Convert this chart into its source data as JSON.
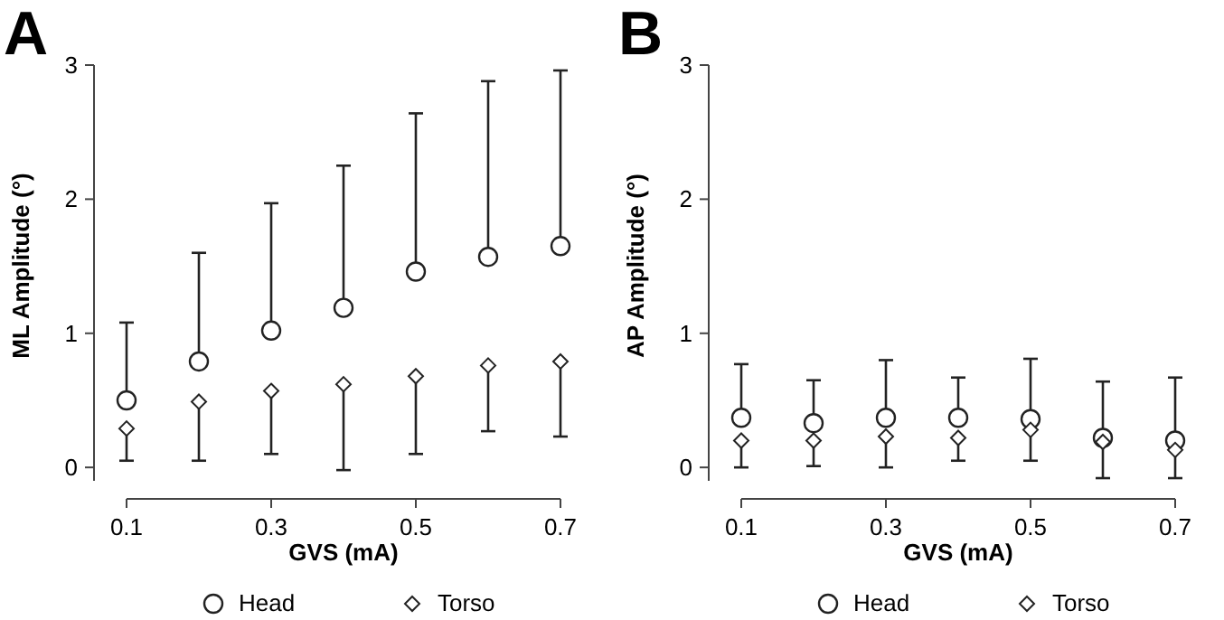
{
  "chart_data": [
    {
      "type": "scatter",
      "title": "A",
      "xlabel": "GVS (mA)",
      "ylabel": "ML Amplitude (°)",
      "x": [
        0.1,
        0.2,
        0.3,
        0.4,
        0.5,
        0.6,
        0.7
      ],
      "xlim": [
        0.1,
        0.7
      ],
      "xticks": [
        0.1,
        0.3,
        0.5,
        0.7
      ],
      "ylim": [
        -0.1,
        3
      ],
      "yticks": [
        0,
        1,
        2,
        3
      ],
      "legend": "bottom",
      "grid": false,
      "series": [
        {
          "name": "Head",
          "color": "#222222",
          "marker": "circle",
          "values": [
            0.5,
            0.79,
            1.02,
            1.19,
            1.46,
            1.57,
            1.65
          ],
          "errors": [
            [
              0.5,
              1.08
            ],
            [
              0.79,
              1.6
            ],
            [
              1.02,
              1.97
            ],
            [
              1.19,
              2.25
            ],
            [
              1.46,
              2.64
            ],
            [
              1.57,
              2.88
            ],
            [
              1.65,
              2.96
            ]
          ]
        },
        {
          "name": "Torso",
          "color": "#222222",
          "marker": "diamond",
          "values": [
            0.29,
            0.49,
            0.57,
            0.62,
            0.68,
            0.76,
            0.79
          ],
          "errors": [
            [
              0.05,
              0.29
            ],
            [
              0.05,
              0.49
            ],
            [
              0.1,
              0.57
            ],
            [
              -0.02,
              0.62
            ],
            [
              0.1,
              0.68
            ],
            [
              0.27,
              0.76
            ],
            [
              0.23,
              0.79
            ]
          ]
        }
      ]
    },
    {
      "type": "scatter",
      "title": "B",
      "xlabel": "GVS (mA)",
      "ylabel": "AP Amplitude (°)",
      "x": [
        0.1,
        0.2,
        0.3,
        0.4,
        0.5,
        0.6,
        0.7
      ],
      "xlim": [
        0.1,
        0.7
      ],
      "xticks": [
        0.1,
        0.3,
        0.5,
        0.7
      ],
      "ylim": [
        -0.1,
        3
      ],
      "yticks": [
        0,
        1,
        2,
        3
      ],
      "legend": "bottom",
      "grid": false,
      "series": [
        {
          "name": "Head",
          "color": "#222222",
          "marker": "circle",
          "values": [
            0.37,
            0.33,
            0.37,
            0.37,
            0.36,
            0.22,
            0.2
          ],
          "errors": [
            [
              0.37,
              0.77
            ],
            [
              0.33,
              0.65
            ],
            [
              0.37,
              0.8
            ],
            [
              0.37,
              0.67
            ],
            [
              0.36,
              0.81
            ],
            [
              0.22,
              0.64
            ],
            [
              0.2,
              0.67
            ]
          ]
        },
        {
          "name": "Torso",
          "color": "#222222",
          "marker": "diamond",
          "values": [
            0.2,
            0.2,
            0.23,
            0.22,
            0.28,
            0.19,
            0.13
          ],
          "errors": [
            [
              0.0,
              0.2
            ],
            [
              0.01,
              0.2
            ],
            [
              0.0,
              0.23
            ],
            [
              0.05,
              0.22
            ],
            [
              0.05,
              0.28
            ],
            [
              -0.08,
              0.19
            ],
            [
              -0.08,
              0.13
            ]
          ]
        }
      ]
    }
  ]
}
